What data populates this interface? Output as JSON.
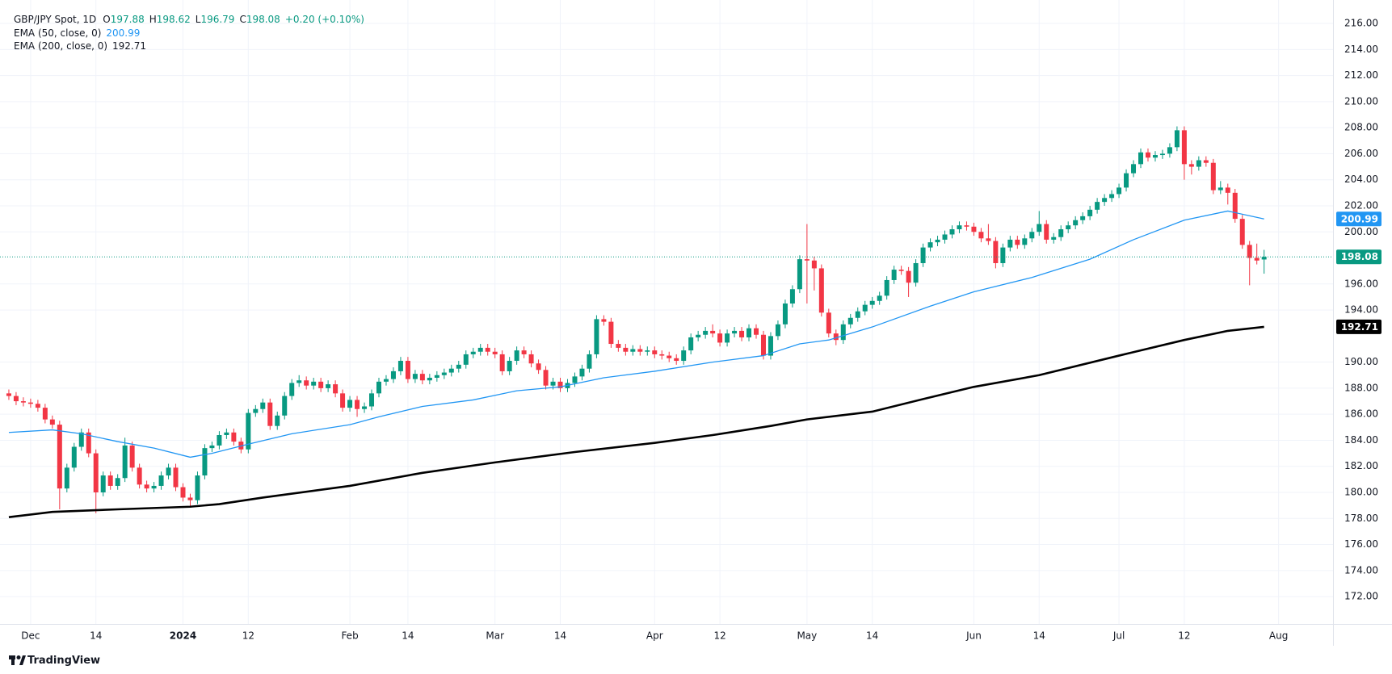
{
  "chart_data": {
    "type": "candlestick",
    "symbol": "GBP/JPY Spot, 1D",
    "ohlc_labels": [
      "O",
      "H",
      "L",
      "C"
    ],
    "change": "+0.20 (+0.10%)",
    "up_color": "#089981",
    "down_color": "#f23645",
    "ohlc": [
      [
        187.6,
        187.9,
        187.1,
        187.4
      ],
      [
        187.4,
        187.7,
        186.7,
        187.0
      ],
      [
        187.0,
        187.3,
        186.6,
        186.9
      ],
      [
        186.9,
        187.2,
        186.5,
        186.8
      ],
      [
        186.8,
        187.1,
        186.2,
        186.5
      ],
      [
        186.5,
        186.8,
        185.3,
        185.6
      ],
      [
        185.6,
        185.9,
        184.9,
        185.2
      ],
      [
        185.2,
        185.5,
        178.7,
        180.3
      ],
      [
        180.3,
        182.2,
        180.0,
        181.9
      ],
      [
        181.9,
        183.8,
        181.6,
        183.5
      ],
      [
        183.5,
        184.9,
        183.2,
        184.6
      ],
      [
        184.6,
        184.9,
        182.7,
        183.0
      ],
      [
        183.0,
        183.3,
        178.4,
        180.0
      ],
      [
        180.0,
        181.6,
        179.7,
        181.3
      ],
      [
        181.3,
        181.6,
        180.2,
        180.5
      ],
      [
        180.5,
        181.4,
        180.2,
        181.1
      ],
      [
        181.1,
        184.2,
        180.8,
        183.6
      ],
      [
        183.6,
        183.9,
        181.6,
        181.9
      ],
      [
        181.9,
        182.2,
        180.3,
        180.6
      ],
      [
        180.6,
        180.9,
        180.0,
        180.3
      ],
      [
        180.3,
        180.8,
        180.0,
        180.5
      ],
      [
        180.5,
        181.6,
        180.2,
        181.3
      ],
      [
        181.3,
        182.2,
        181.0,
        181.9
      ],
      [
        181.9,
        182.2,
        180.1,
        180.4
      ],
      [
        180.4,
        180.7,
        179.3,
        179.6
      ],
      [
        179.6,
        179.9,
        178.9,
        179.4
      ],
      [
        179.4,
        181.6,
        179.1,
        181.3
      ],
      [
        181.3,
        183.7,
        181.0,
        183.4
      ],
      [
        183.4,
        183.9,
        183.1,
        183.6
      ],
      [
        183.6,
        184.7,
        183.3,
        184.4
      ],
      [
        184.4,
        184.9,
        184.1,
        184.6
      ],
      [
        184.6,
        184.9,
        183.6,
        183.9
      ],
      [
        183.9,
        184.2,
        183.0,
        183.3
      ],
      [
        183.3,
        186.4,
        183.0,
        186.1
      ],
      [
        186.1,
        186.7,
        185.8,
        186.4
      ],
      [
        186.4,
        187.2,
        186.1,
        186.9
      ],
      [
        186.9,
        187.2,
        184.8,
        185.1
      ],
      [
        185.1,
        186.2,
        184.8,
        185.9
      ],
      [
        185.9,
        187.7,
        185.6,
        187.4
      ],
      [
        187.4,
        188.7,
        187.1,
        188.4
      ],
      [
        188.4,
        189.0,
        188.1,
        188.6
      ],
      [
        188.6,
        188.9,
        187.9,
        188.2
      ],
      [
        188.2,
        188.8,
        187.9,
        188.5
      ],
      [
        188.5,
        188.8,
        187.7,
        188.0
      ],
      [
        188.0,
        188.6,
        187.7,
        188.3
      ],
      [
        188.3,
        188.6,
        187.3,
        187.6
      ],
      [
        187.6,
        187.9,
        186.2,
        186.5
      ],
      [
        186.5,
        187.4,
        186.2,
        187.1
      ],
      [
        187.1,
        187.4,
        185.8,
        186.4
      ],
      [
        186.4,
        186.9,
        186.1,
        186.6
      ],
      [
        186.6,
        187.9,
        186.3,
        187.6
      ],
      [
        187.6,
        188.8,
        187.3,
        188.5
      ],
      [
        188.5,
        189.0,
        188.2,
        188.7
      ],
      [
        188.7,
        189.6,
        188.4,
        189.3
      ],
      [
        189.3,
        190.4,
        189.0,
        190.1
      ],
      [
        190.1,
        190.4,
        188.4,
        188.7
      ],
      [
        188.7,
        189.4,
        188.4,
        189.1
      ],
      [
        189.1,
        189.4,
        188.3,
        188.6
      ],
      [
        188.6,
        189.1,
        188.3,
        188.8
      ],
      [
        188.8,
        189.3,
        188.5,
        189.0
      ],
      [
        189.0,
        189.5,
        188.7,
        189.2
      ],
      [
        189.2,
        189.8,
        188.9,
        189.5
      ],
      [
        189.5,
        190.1,
        189.2,
        189.8
      ],
      [
        189.8,
        190.9,
        189.5,
        190.6
      ],
      [
        190.6,
        191.1,
        190.3,
        190.8
      ],
      [
        190.8,
        191.4,
        190.5,
        191.1
      ],
      [
        191.1,
        191.4,
        190.5,
        190.8
      ],
      [
        190.8,
        191.1,
        190.3,
        190.6
      ],
      [
        190.6,
        190.9,
        189.0,
        189.3
      ],
      [
        189.3,
        190.4,
        189.0,
        190.1
      ],
      [
        190.1,
        191.2,
        189.8,
        190.9
      ],
      [
        190.9,
        191.2,
        190.3,
        190.6
      ],
      [
        190.6,
        190.9,
        189.6,
        189.9
      ],
      [
        189.9,
        190.2,
        189.1,
        189.4
      ],
      [
        189.4,
        189.7,
        187.9,
        188.2
      ],
      [
        188.2,
        188.8,
        187.9,
        188.5
      ],
      [
        188.5,
        188.8,
        187.7,
        188.0
      ],
      [
        188.0,
        188.7,
        187.7,
        188.4
      ],
      [
        188.4,
        189.2,
        188.1,
        188.9
      ],
      [
        188.9,
        189.8,
        188.6,
        189.5
      ],
      [
        189.5,
        190.9,
        189.2,
        190.6
      ],
      [
        190.6,
        193.6,
        190.3,
        193.3
      ],
      [
        193.3,
        193.6,
        192.8,
        193.1
      ],
      [
        193.1,
        193.4,
        191.1,
        191.4
      ],
      [
        191.4,
        191.7,
        190.8,
        191.1
      ],
      [
        191.1,
        191.4,
        190.5,
        190.8
      ],
      [
        190.8,
        191.3,
        190.5,
        191.0
      ],
      [
        191.0,
        191.3,
        190.5,
        190.8
      ],
      [
        190.8,
        191.2,
        190.5,
        190.9
      ],
      [
        190.9,
        191.2,
        190.3,
        190.6
      ],
      [
        190.6,
        190.9,
        190.2,
        190.5
      ],
      [
        190.5,
        190.8,
        190.0,
        190.3
      ],
      [
        190.3,
        190.6,
        189.8,
        190.1
      ],
      [
        190.1,
        191.2,
        189.8,
        190.9
      ],
      [
        190.9,
        192.2,
        190.6,
        191.9
      ],
      [
        191.9,
        192.4,
        191.6,
        192.1
      ],
      [
        192.1,
        192.7,
        191.8,
        192.4
      ],
      [
        192.4,
        192.9,
        191.9,
        192.2
      ],
      [
        192.2,
        192.5,
        191.2,
        191.5
      ],
      [
        191.5,
        192.5,
        191.2,
        192.2
      ],
      [
        192.2,
        192.7,
        191.9,
        192.4
      ],
      [
        192.4,
        192.7,
        191.6,
        191.9
      ],
      [
        191.9,
        192.9,
        191.6,
        192.6
      ],
      [
        192.6,
        192.9,
        191.8,
        192.1
      ],
      [
        192.1,
        192.4,
        190.2,
        190.5
      ],
      [
        190.5,
        192.3,
        190.2,
        192.0
      ],
      [
        192.0,
        193.2,
        191.7,
        192.9
      ],
      [
        192.9,
        194.8,
        192.6,
        194.5
      ],
      [
        194.5,
        195.9,
        194.2,
        195.6
      ],
      [
        195.6,
        198.2,
        195.3,
        197.9
      ],
      [
        197.9,
        200.6,
        194.5,
        197.8
      ],
      [
        197.8,
        198.1,
        195.5,
        197.2
      ],
      [
        197.2,
        197.5,
        193.5,
        193.8
      ],
      [
        193.8,
        194.1,
        191.9,
        192.2
      ],
      [
        192.2,
        192.5,
        191.3,
        191.7
      ],
      [
        191.7,
        193.2,
        191.4,
        192.9
      ],
      [
        192.9,
        193.7,
        192.6,
        193.4
      ],
      [
        193.4,
        194.2,
        193.1,
        193.9
      ],
      [
        193.9,
        194.7,
        193.6,
        194.4
      ],
      [
        194.4,
        195.0,
        194.1,
        194.7
      ],
      [
        194.7,
        195.4,
        194.4,
        195.1
      ],
      [
        195.1,
        196.6,
        194.8,
        196.3
      ],
      [
        196.3,
        197.4,
        196.0,
        197.1
      ],
      [
        197.1,
        197.4,
        196.7,
        197.0
      ],
      [
        197.0,
        197.3,
        195.0,
        196.1
      ],
      [
        196.1,
        197.9,
        195.8,
        197.6
      ],
      [
        197.6,
        199.1,
        197.3,
        198.8
      ],
      [
        198.8,
        199.5,
        198.5,
        199.2
      ],
      [
        199.2,
        199.7,
        198.9,
        199.4
      ],
      [
        199.4,
        200.1,
        199.1,
        199.8
      ],
      [
        199.8,
        200.5,
        199.5,
        200.2
      ],
      [
        200.2,
        200.8,
        199.9,
        200.5
      ],
      [
        200.5,
        200.8,
        200.1,
        200.4
      ],
      [
        200.4,
        200.7,
        199.7,
        200.0
      ],
      [
        200.0,
        200.3,
        199.2,
        199.5
      ],
      [
        199.5,
        200.6,
        199.0,
        199.3
      ],
      [
        199.3,
        199.6,
        197.2,
        197.6
      ],
      [
        197.6,
        199.1,
        197.3,
        198.8
      ],
      [
        198.8,
        199.7,
        198.5,
        199.4
      ],
      [
        199.4,
        199.7,
        198.7,
        199.0
      ],
      [
        199.0,
        199.8,
        198.7,
        199.5
      ],
      [
        199.5,
        200.3,
        199.2,
        200.0
      ],
      [
        200.0,
        201.6,
        199.7,
        200.6
      ],
      [
        200.6,
        200.9,
        199.1,
        199.4
      ],
      [
        199.4,
        199.9,
        199.1,
        199.6
      ],
      [
        199.6,
        200.5,
        199.3,
        200.2
      ],
      [
        200.2,
        200.8,
        199.9,
        200.5
      ],
      [
        200.5,
        201.2,
        200.2,
        200.9
      ],
      [
        200.9,
        201.5,
        200.6,
        201.2
      ],
      [
        201.2,
        202.0,
        200.9,
        201.7
      ],
      [
        201.7,
        202.6,
        201.4,
        202.3
      ],
      [
        202.3,
        202.9,
        202.0,
        202.6
      ],
      [
        202.6,
        203.2,
        202.3,
        202.9
      ],
      [
        202.9,
        203.7,
        202.6,
        203.4
      ],
      [
        203.4,
        204.8,
        203.1,
        204.5
      ],
      [
        204.5,
        205.5,
        204.2,
        205.2
      ],
      [
        205.2,
        206.4,
        204.9,
        206.1
      ],
      [
        206.1,
        206.4,
        205.4,
        205.7
      ],
      [
        205.7,
        206.2,
        205.4,
        205.9
      ],
      [
        205.9,
        206.3,
        205.6,
        206.0
      ],
      [
        206.0,
        206.8,
        205.7,
        206.5
      ],
      [
        206.5,
        208.1,
        206.2,
        207.8
      ],
      [
        207.8,
        208.1,
        204.0,
        205.2
      ],
      [
        205.2,
        205.5,
        204.4,
        205.0
      ],
      [
        205.0,
        205.8,
        204.7,
        205.5
      ],
      [
        205.5,
        205.8,
        205.0,
        205.3
      ],
      [
        205.3,
        205.6,
        202.9,
        203.2
      ],
      [
        203.2,
        203.9,
        202.9,
        203.4
      ],
      [
        203.4,
        203.7,
        202.1,
        203.0
      ],
      [
        203.0,
        203.3,
        200.7,
        201.0
      ],
      [
        201.0,
        201.3,
        198.7,
        199.0
      ],
      [
        199.0,
        199.3,
        195.9,
        198.0
      ],
      [
        198.0,
        199.1,
        197.5,
        197.8
      ],
      [
        197.88,
        198.62,
        196.79,
        198.08
      ]
    ],
    "series": [
      {
        "name": "EMA (50, close, 0)",
        "color": "#2196f3",
        "width": 1.3,
        "x": [
          0,
          6,
          10,
          15,
          20,
          25,
          28,
          33,
          39,
          47,
          51,
          57,
          64,
          70,
          76,
          82,
          89,
          97,
          104,
          109,
          113,
          119,
          127,
          133,
          141,
          149,
          155,
          162,
          168,
          173
        ],
        "values": [
          184.6,
          184.8,
          184.5,
          183.9,
          183.4,
          182.7,
          183.0,
          183.7,
          184.5,
          185.2,
          185.8,
          186.6,
          187.1,
          187.8,
          188.1,
          188.8,
          189.3,
          190.0,
          190.5,
          191.4,
          191.7,
          192.7,
          194.3,
          195.4,
          196.5,
          197.9,
          199.4,
          200.9,
          201.6,
          200.99
        ]
      },
      {
        "name": "EMA (200, close, 0)",
        "color": "#000000",
        "width": 2.6,
        "x": [
          0,
          6,
          15,
          25,
          29,
          35,
          47,
          57,
          67,
          78,
          89,
          97,
          105,
          110,
          119,
          127,
          133,
          142,
          153,
          162,
          168,
          173
        ],
        "values": [
          178.1,
          178.5,
          178.7,
          178.9,
          179.1,
          179.6,
          180.5,
          181.5,
          182.3,
          183.1,
          183.8,
          184.4,
          185.1,
          185.6,
          186.2,
          187.3,
          188.1,
          189.0,
          190.5,
          191.7,
          192.4,
          192.71
        ]
      }
    ],
    "xlim": [
      -1.22,
      182.5
    ],
    "xticks": [
      {
        "value": 3,
        "label": "Dec"
      },
      {
        "value": 12,
        "label": "14"
      },
      {
        "value": 24,
        "label": "2024"
      },
      {
        "value": 33,
        "label": "12"
      },
      {
        "value": 47,
        "label": "Feb"
      },
      {
        "value": 55,
        "label": "14"
      },
      {
        "value": 67,
        "label": "Mar"
      },
      {
        "value": 76,
        "label": "14"
      },
      {
        "value": 89,
        "label": "Apr"
      },
      {
        "value": 98,
        "label": "12"
      },
      {
        "value": 110,
        "label": "May"
      },
      {
        "value": 119,
        "label": "14"
      },
      {
        "value": 133,
        "label": "Jun"
      },
      {
        "value": 142,
        "label": "14"
      },
      {
        "value": 153,
        "label": "Jul"
      },
      {
        "value": 162,
        "label": "12"
      },
      {
        "value": 175,
        "label": "Aug"
      }
    ],
    "ylim": [
      169.9,
      217.8
    ],
    "yticks": [
      {
        "value": 172,
        "label": "172.00"
      },
      {
        "value": 174,
        "label": "174.00"
      },
      {
        "value": 176,
        "label": "176.00"
      },
      {
        "value": 178,
        "label": "178.00"
      },
      {
        "value": 180,
        "label": "180.00"
      },
      {
        "value": 182,
        "label": "182.00"
      },
      {
        "value": 184,
        "label": "184.00"
      },
      {
        "value": 186,
        "label": "186.00"
      },
      {
        "value": 188,
        "label": "188.00"
      },
      {
        "value": 190,
        "label": "190.00"
      },
      {
        "value": 194,
        "label": "194.00"
      },
      {
        "value": 196,
        "label": "196.00"
      },
      {
        "value": 200,
        "label": "200.00"
      },
      {
        "value": 202,
        "label": "202.00"
      },
      {
        "value": 204,
        "label": "204.00"
      },
      {
        "value": 206,
        "label": "206.00"
      },
      {
        "value": 208,
        "label": "208.00"
      },
      {
        "value": 210,
        "label": "210.00"
      },
      {
        "value": 212,
        "label": "212.00"
      },
      {
        "value": 214,
        "label": "214.00"
      },
      {
        "value": 216,
        "label": "216.00"
      }
    ],
    "grid": true,
    "watermark": "TradingView"
  }
}
